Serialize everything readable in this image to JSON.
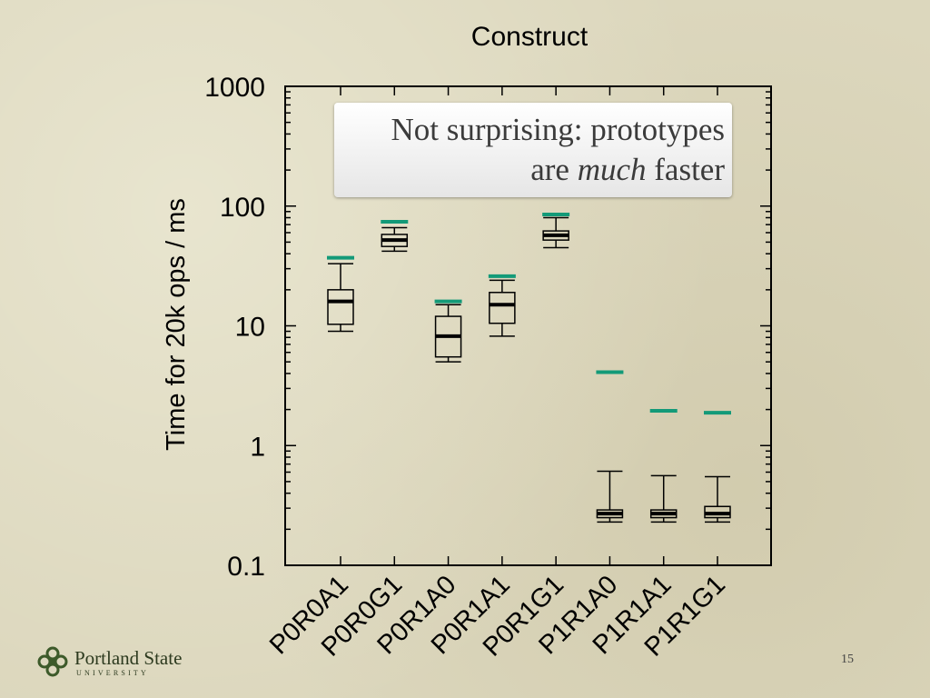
{
  "callout": {
    "line1": "Not surprising: prototypes",
    "line2_pre": "are",
    "line2_em": "much",
    "line2_post": "faster"
  },
  "logo": {
    "name": "Portland State",
    "sub": "UNIVERSITY"
  },
  "page_number": "15",
  "colors": {
    "marker": "#139a78",
    "axis": "#000000",
    "background": "#dcd7bd"
  },
  "chart_data": {
    "type": "boxplot",
    "title": "Construct",
    "xlabel": "",
    "ylabel": "Time for 20k ops / ms",
    "yscale": "log",
    "ylim": [
      0.1,
      1000
    ],
    "yticks": [
      "0.1",
      "1",
      "10",
      "100",
      "1000"
    ],
    "categories": [
      "P0R0A1",
      "P0R0G1",
      "P0R1A0",
      "P0R1A1",
      "P0R1G1",
      "P1R1A0",
      "P1R1A1",
      "P1R1G1"
    ],
    "boxes": [
      {
        "whisker_low": 9,
        "q1": 10.3,
        "median": 16,
        "q3": 20,
        "whisker_high": 33,
        "marker": 37
      },
      {
        "whisker_low": 42,
        "q1": 46,
        "median": 52,
        "q3": 58,
        "whisker_high": 66,
        "marker": 74
      },
      {
        "whisker_low": 5.0,
        "q1": 5.5,
        "median": 8.2,
        "q3": 12,
        "whisker_high": 15,
        "marker": 16
      },
      {
        "whisker_low": 8.2,
        "q1": 10.5,
        "median": 15,
        "q3": 19,
        "whisker_high": 24,
        "marker": 26
      },
      {
        "whisker_low": 45,
        "q1": 52,
        "median": 57,
        "q3": 62,
        "whisker_high": 80,
        "marker": 85
      },
      {
        "whisker_low": 0.23,
        "q1": 0.25,
        "median": 0.27,
        "q3": 0.29,
        "whisker_high": 0.61,
        "marker": 4.1
      },
      {
        "whisker_low": 0.23,
        "q1": 0.25,
        "median": 0.27,
        "q3": 0.29,
        "whisker_high": 0.56,
        "marker": 1.95
      },
      {
        "whisker_low": 0.23,
        "q1": 0.25,
        "median": 0.27,
        "q3": 0.31,
        "whisker_high": 0.55,
        "marker": 1.88
      }
    ]
  }
}
